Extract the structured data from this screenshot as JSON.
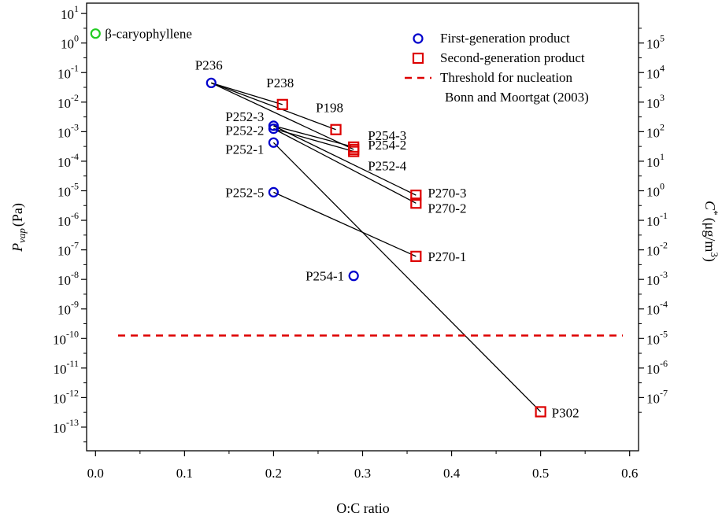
{
  "chart_data": {
    "type": "scatter",
    "xlabel": "O:C ratio",
    "ylabel": {
      "main": "P",
      "sub": "vap",
      "unit": "(Pa)"
    },
    "y2label": {
      "main": "C",
      "sup": "*",
      "unit_pre": "(μg/m",
      "unit_sup": "3",
      "unit_post": ")"
    },
    "xlim": [
      -0.01,
      0.61
    ],
    "ylim_log10": [
      -13.8,
      1.35
    ],
    "xticks": [
      "0.0",
      "0.1",
      "0.2",
      "0.3",
      "0.4",
      "0.5",
      "0.6"
    ],
    "yticks_exp": [
      "1",
      "0",
      "-1",
      "-2",
      "-3",
      "-4",
      "-5",
      "-6",
      "-7",
      "-8",
      "-9",
      "-10",
      "-11",
      "-12",
      "-13"
    ],
    "y2ticks_exp": [
      "5",
      "4",
      "3",
      "2",
      "1",
      "0",
      "-1",
      "-2",
      "-3",
      "-4",
      "-5",
      "-6",
      "-7"
    ],
    "y2_offset_log10": 5,
    "scale": "log",
    "grid": false,
    "legend_position": "top-right",
    "colors": {
      "first": "#0000cc",
      "second": "#dd0000",
      "parent": "#22cc22",
      "threshold": "#dd0000",
      "line": "#000000"
    },
    "legend": [
      {
        "marker": "circle",
        "color": "#0000cc",
        "label": "First-generation product"
      },
      {
        "marker": "square",
        "color": "#dd0000",
        "label": "Second-generation product"
      },
      {
        "marker": "dash",
        "color": "#dd0000",
        "label": "Threshold for nucleation"
      },
      {
        "marker": "none",
        "color": "#000000",
        "label": "Bonn and Moortgat (2003)"
      }
    ],
    "threshold_log10": -9.9,
    "points": [
      {
        "id": "bcary",
        "label": "β-caryophyllene",
        "x": 0.0,
        "logy": 0.32,
        "group": "parent"
      },
      {
        "id": "P236",
        "label": "P236",
        "x": 0.13,
        "logy": -1.35,
        "group": "first"
      },
      {
        "id": "P252-3",
        "label": "P252-3",
        "x": 0.2,
        "logy": -2.8,
        "group": "first"
      },
      {
        "id": "P252-2",
        "label": "P252-2",
        "x": 0.2,
        "logy": -2.9,
        "group": "first"
      },
      {
        "id": "P252-1",
        "label": "P252-1",
        "x": 0.2,
        "logy": -3.37,
        "group": "first"
      },
      {
        "id": "P252-5",
        "label": "P252-5",
        "x": 0.2,
        "logy": -5.05,
        "group": "first"
      },
      {
        "id": "P254-1",
        "label": "P254-1",
        "x": 0.29,
        "logy": -7.88,
        "group": "first"
      },
      {
        "id": "P238",
        "label": "P238",
        "x": 0.21,
        "logy": -2.08,
        "group": "second"
      },
      {
        "id": "P198",
        "label": "P198",
        "x": 0.27,
        "logy": -2.93,
        "group": "second"
      },
      {
        "id": "P254-3",
        "label": "P254-3",
        "x": 0.29,
        "logy": -3.52,
        "group": "second"
      },
      {
        "id": "P254-2",
        "label": "P254-2",
        "x": 0.29,
        "logy": -3.6,
        "group": "second"
      },
      {
        "id": "P252-4",
        "label": "P252-4",
        "x": 0.29,
        "logy": -3.67,
        "group": "second"
      },
      {
        "id": "P270-3",
        "label": "P270-3",
        "x": 0.36,
        "logy": -5.15,
        "group": "second"
      },
      {
        "id": "P270-2",
        "label": "P270-2",
        "x": 0.36,
        "logy": -5.42,
        "group": "second"
      },
      {
        "id": "P270-1",
        "label": "P270-1",
        "x": 0.36,
        "logy": -7.22,
        "group": "second"
      },
      {
        "id": "P302",
        "label": "P302",
        "x": 0.5,
        "logy": -12.48,
        "group": "second"
      }
    ],
    "connections": [
      [
        "P236",
        "P238"
      ],
      [
        "P236",
        "P198"
      ],
      [
        "P236",
        "P254-2"
      ],
      [
        "P252-3",
        "P254-3"
      ],
      [
        "P252-3",
        "P270-3"
      ],
      [
        "P252-2",
        "P252-4"
      ],
      [
        "P252-2",
        "P270-2"
      ],
      [
        "P252-1",
        "P302"
      ],
      [
        "P252-5",
        "P270-1"
      ]
    ]
  }
}
